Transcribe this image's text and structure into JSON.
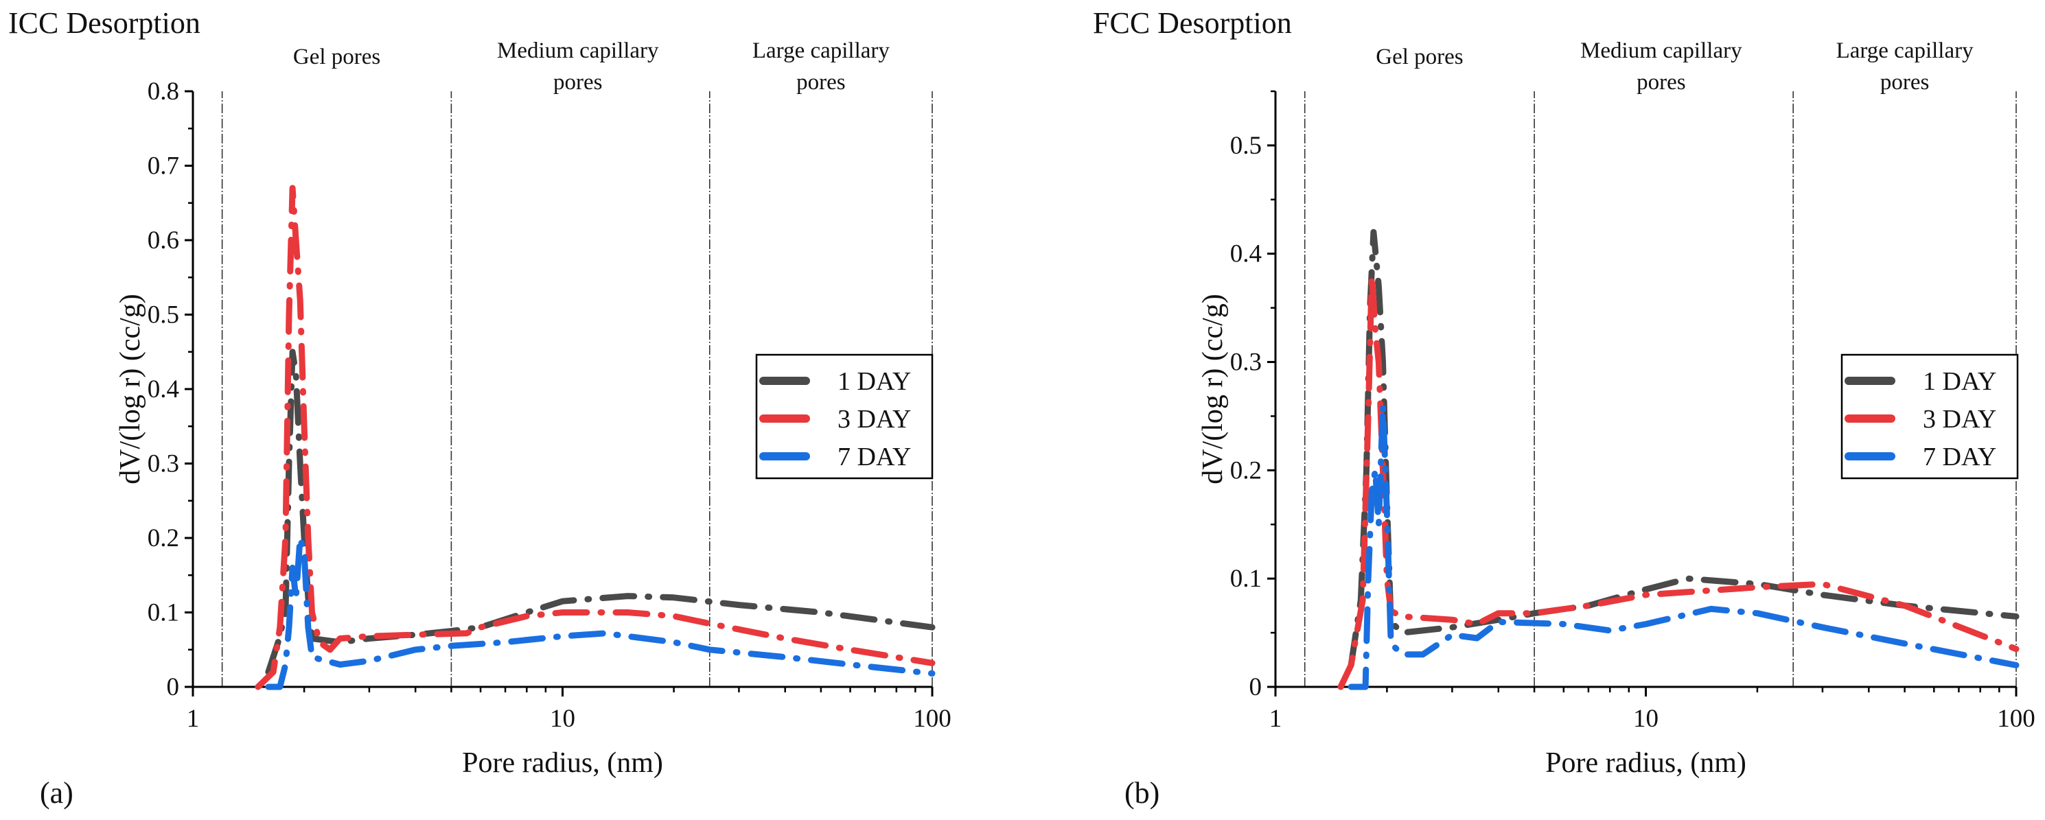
{
  "chart_data": [
    {
      "type": "line",
      "title": "ICC Desorption",
      "panel_label": "(a)",
      "xlabel": "Pore radius, (nm)",
      "ylabel": "dV/(log r) (cc/g)",
      "xscale": "log",
      "xlim": [
        1,
        100
      ],
      "ylim": [
        0,
        0.8
      ],
      "xticks": [
        "1",
        "10",
        "100"
      ],
      "yticks": [
        "0",
        "0.1",
        "0.2",
        "0.3",
        "0.4",
        "0.5",
        "0.6",
        "0.7",
        "0.8"
      ],
      "region_boundaries": [
        1.2,
        5,
        25,
        100
      ],
      "regions": [
        {
          "lines": [
            "Gel pores"
          ],
          "x": 2.45
        },
        {
          "lines": [
            "Medium capillary",
            "pores"
          ],
          "x": 11
        },
        {
          "lines": [
            "Large capillary",
            "pores"
          ],
          "x": 50
        }
      ],
      "legend_position": "center-right",
      "series": [
        {
          "name": "1 DAY",
          "color": "#4a4a4a",
          "x": [
            1.6,
            1.7,
            1.78,
            1.82,
            1.86,
            1.9,
            1.95,
            2.0,
            2.05,
            2.1,
            2.5,
            3,
            4,
            5,
            6,
            8,
            10,
            15,
            20,
            30,
            50,
            100
          ],
          "y": [
            0.02,
            0.06,
            0.1,
            0.3,
            0.45,
            0.42,
            0.3,
            0.2,
            0.12,
            0.065,
            0.06,
            0.065,
            0.07,
            0.075,
            0.08,
            0.1,
            0.115,
            0.122,
            0.12,
            0.11,
            0.1,
            0.08
          ]
        },
        {
          "name": "3 DAY",
          "color": "#e8383c",
          "x": [
            1.5,
            1.65,
            1.72,
            1.78,
            1.82,
            1.86,
            1.9,
            1.95,
            2.0,
            2.05,
            2.1,
            2.2,
            2.35,
            2.5,
            3,
            4,
            5.5,
            6,
            8,
            10,
            15,
            20,
            25,
            40,
            60,
            100
          ],
          "y": [
            0,
            0.02,
            0.08,
            0.2,
            0.5,
            0.67,
            0.6,
            0.52,
            0.35,
            0.2,
            0.1,
            0.06,
            0.05,
            0.065,
            0.068,
            0.07,
            0.072,
            0.08,
            0.095,
            0.1,
            0.1,
            0.095,
            0.085,
            0.065,
            0.05,
            0.032
          ]
        },
        {
          "name": "7 DAY",
          "color": "#1a6fe0",
          "x": [
            1.6,
            1.72,
            1.78,
            1.82,
            1.86,
            1.9,
            1.95,
            2.0,
            2.05,
            2.1,
            2.5,
            3,
            4,
            5,
            7,
            10,
            13,
            20,
            25,
            40,
            60,
            100
          ],
          "y": [
            0,
            0,
            0.03,
            0.08,
            0.16,
            0.12,
            0.2,
            0.18,
            0.08,
            0.04,
            0.03,
            0.035,
            0.05,
            0.055,
            0.06,
            0.068,
            0.072,
            0.06,
            0.05,
            0.04,
            0.03,
            0.018
          ]
        }
      ]
    },
    {
      "type": "line",
      "title": "FCC Desorption",
      "panel_label": "(b)",
      "xlabel": "Pore radius, (nm)",
      "ylabel": "dV/(log r) (cc/g)",
      "xscale": "log",
      "xlim": [
        1,
        100
      ],
      "ylim": [
        0,
        0.55
      ],
      "xticks": [
        "1",
        "10",
        "100"
      ],
      "yticks": [
        "0",
        "0.1",
        "0.2",
        "0.3",
        "0.4",
        "0.5"
      ],
      "region_boundaries": [
        1.2,
        5,
        25,
        100
      ],
      "regions": [
        {
          "lines": [
            "Gel pores"
          ],
          "x": 2.45
        },
        {
          "lines": [
            "Medium capillary",
            "pores"
          ],
          "x": 11
        },
        {
          "lines": [
            "Large capillary",
            "pores"
          ],
          "x": 50
        }
      ],
      "legend_position": "center-right",
      "series": [
        {
          "name": "1 DAY",
          "color": "#4a4a4a",
          "x": [
            1.6,
            1.7,
            1.76,
            1.8,
            1.84,
            1.9,
            1.95,
            2.0,
            2.05,
            2.2,
            3,
            4,
            5,
            7,
            10,
            13,
            20,
            30,
            50,
            100
          ],
          "y": [
            0.02,
            0.08,
            0.2,
            0.35,
            0.42,
            0.37,
            0.3,
            0.17,
            0.06,
            0.05,
            0.055,
            0.062,
            0.068,
            0.075,
            0.09,
            0.1,
            0.095,
            0.085,
            0.075,
            0.065
          ]
        },
        {
          "name": "3 DAY",
          "color": "#e8383c",
          "x": [
            1.5,
            1.6,
            1.72,
            1.78,
            1.82,
            1.86,
            1.9,
            1.95,
            2.0,
            2.05,
            2.2,
            3,
            3.5,
            4,
            5,
            7,
            10,
            20,
            30,
            50,
            100
          ],
          "y": [
            0,
            0.02,
            0.08,
            0.25,
            0.38,
            0.33,
            0.3,
            0.2,
            0.1,
            0.07,
            0.065,
            0.062,
            0.058,
            0.068,
            0.068,
            0.075,
            0.085,
            0.092,
            0.095,
            0.075,
            0.035
          ]
        },
        {
          "name": "7 DAY",
          "color": "#1a6fe0",
          "x": [
            1.6,
            1.75,
            1.78,
            1.82,
            1.86,
            1.9,
            1.95,
            2.0,
            2.05,
            2.2,
            2.5,
            3,
            3.5,
            4,
            6,
            8,
            10,
            15,
            20,
            30,
            50,
            100
          ],
          "y": [
            0,
            0,
            0.1,
            0.18,
            0.2,
            0.15,
            0.26,
            0.16,
            0.04,
            0.03,
            0.03,
            0.048,
            0.045,
            0.06,
            0.058,
            0.052,
            0.058,
            0.072,
            0.068,
            0.055,
            0.04,
            0.02
          ]
        }
      ]
    }
  ]
}
